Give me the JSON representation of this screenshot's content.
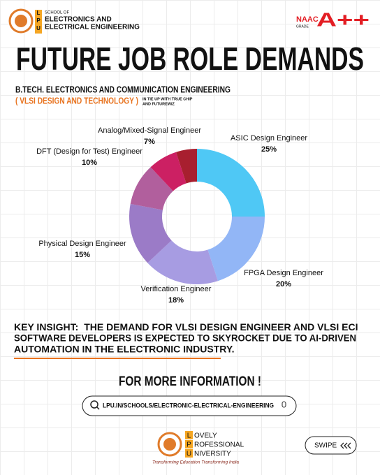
{
  "header": {
    "logo_letters": [
      "L",
      "P",
      "U"
    ],
    "school_of": "SCHOOL OF",
    "school_line1": "ELECTRONICS AND",
    "school_line2": "ELECTRICAL ENGINEERING",
    "naac": "NAAC",
    "grade": "GRADE",
    "grade_value": "A++"
  },
  "title": "FUTURE JOB ROLE DEMANDS",
  "subtitle": "B.TECH. ELECTRONICS AND COMMUNICATION ENGINEERING",
  "specialization": "( VLSI DESIGN AND TECHNOLOGY )",
  "tie_up_line1": "IN TIE UP WITH TRUE CHIP",
  "tie_up_line2": "AND FUTUREWIZ",
  "chart_data": {
    "type": "donut",
    "categories": [
      "ASIC Design Engineer",
      "FPGA Design Engineer",
      "Verification Engineer",
      "Physical Design Engineer",
      "DFT (Design for Test) Engineer",
      "Analog/Mixed-Signal Engineer",
      null
    ],
    "values": [
      25,
      20,
      18,
      15,
      10,
      7,
      5
    ],
    "value_labels": [
      "25%",
      "20%",
      "18%",
      "15%",
      "10%",
      "7%",
      null
    ],
    "colors": [
      "#4fc8f5",
      "#92b6f6",
      "#a79ce2",
      "#9b7bc7",
      "#b15f9d",
      "#cc2063",
      "#a81f2f"
    ]
  },
  "key_insight": {
    "label": "KEY INSIGHT:",
    "lines": [
      "THE DEMAND FOR VLSI DESIGN ENGINEER AND VLSI ECI",
      "SOFTWARE DEVELOPERS IS EXPECTED TO SKYROCKET DUE TO AI-DRIVEN",
      "AUTOMATION IN THE ELECTRONIC INDUSTRY."
    ]
  },
  "more_info": "FOR MORE INFORMATION !",
  "url": "LPU.IN/SCHOOLS/ELECTRONIC-ELECTRICAL-ENGINEERING",
  "footer": {
    "letters": [
      "L",
      "P",
      "U"
    ],
    "words": [
      "OVELY",
      "ROFESSIONAL",
      "NIVERSITY"
    ],
    "tagline": "Transforming Education Transforming India"
  },
  "swipe": "SWIPE"
}
